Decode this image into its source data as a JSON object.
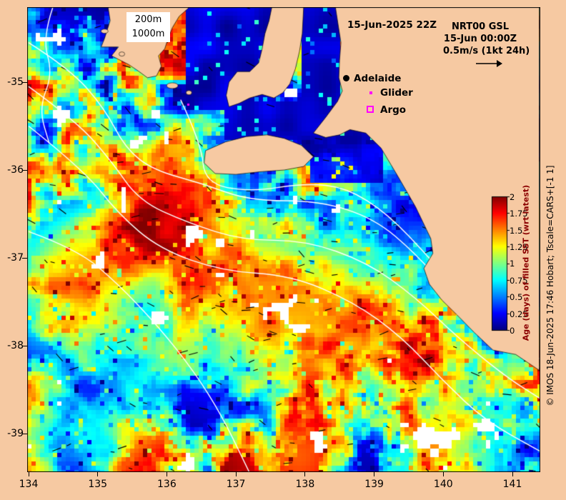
{
  "header": {
    "depth_legend": {
      "line1": "200m",
      "line2": "1000m"
    },
    "sst_timestamp": "15-Jun-2025 22Z",
    "model_name": "NRT00 GSL",
    "model_time": "15-Jun 00:00Z",
    "velocity_scale": "0.5m/s (1kt 24h)"
  },
  "map_markers": {
    "city": "Adelaide",
    "glider": "Glider",
    "argo": "Argo"
  },
  "axes": {
    "x_ticks": [
      "134",
      "135",
      "136",
      "137",
      "138",
      "139",
      "140",
      "141"
    ],
    "y_ticks": [
      "-35",
      "-36",
      "-37",
      "-38",
      "-39"
    ]
  },
  "colorbar": {
    "label": "Age (days) of filled SST (wrt latest)",
    "ticks": [
      "2",
      "1.75",
      "1.5",
      "1.25",
      "1",
      "0.75",
      "0.5",
      "0.25",
      "0"
    ],
    "min": 0,
    "max": 2
  },
  "copyright": "© IMOS 18-Jun-2025 17:46 Hobart; Tscale=CARS+[-1 1]",
  "map": {
    "land_color": "#f6c9a2",
    "deep_water_color": "#000080",
    "contour_color": "#ffffff",
    "marker_color": "#ff00ff",
    "seed": 11
  }
}
